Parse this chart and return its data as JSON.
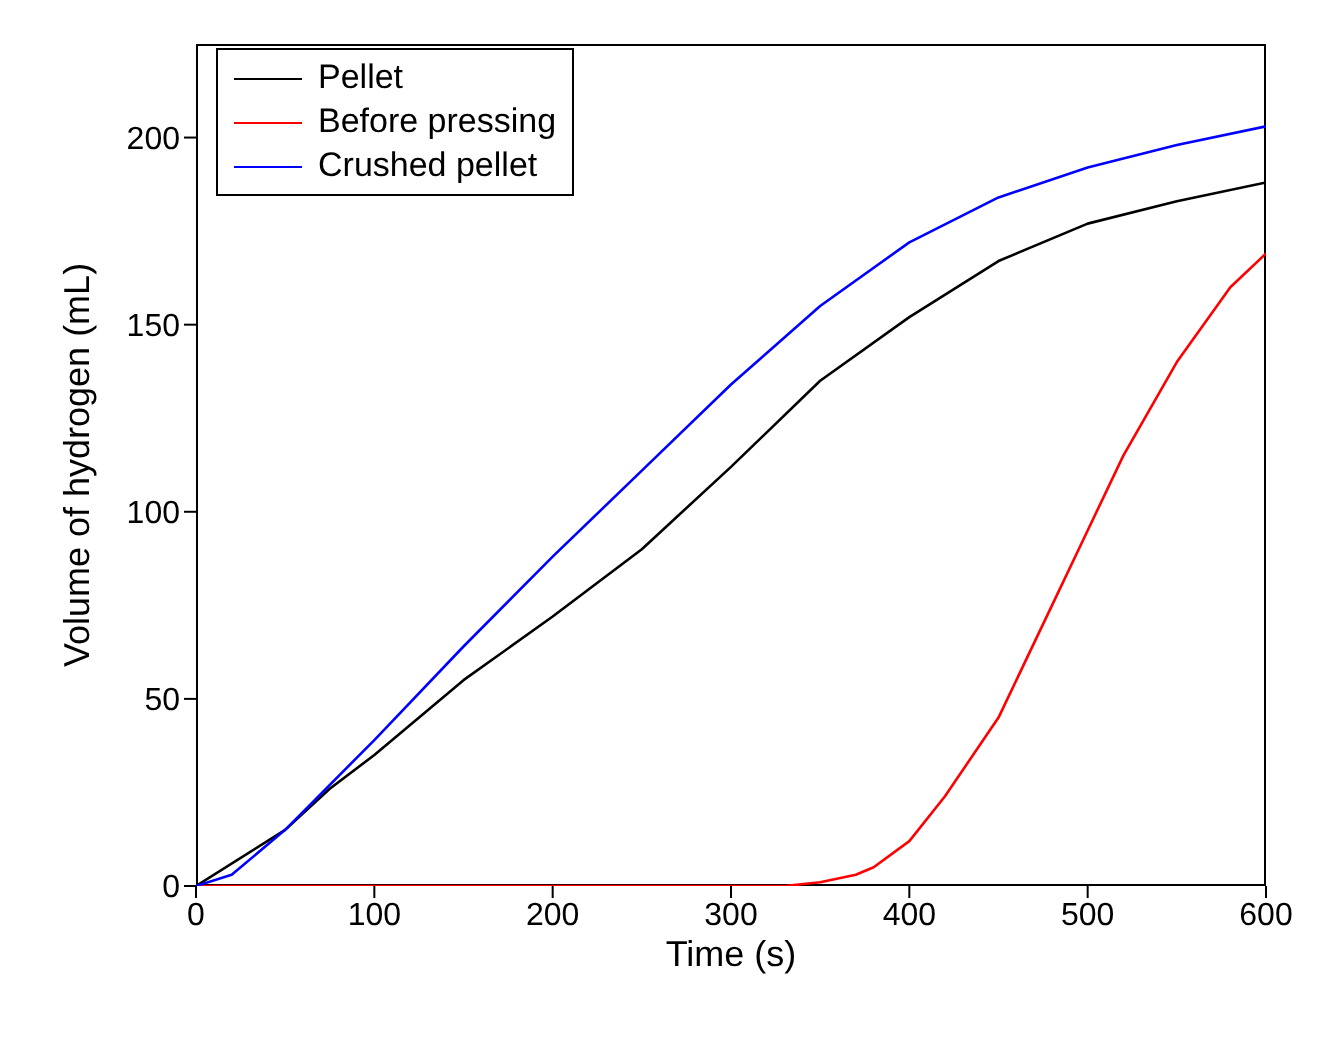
{
  "chart_data": {
    "type": "line",
    "xlabel": "Time (s)",
    "ylabel": "Volume of hydrogen (mL)",
    "xlim": [
      0,
      600
    ],
    "ylim": [
      0,
      225
    ],
    "xticks": [
      0,
      100,
      200,
      300,
      400,
      500,
      600
    ],
    "yticks": [
      0,
      50,
      100,
      150,
      200
    ],
    "grid": false,
    "legend": "top left",
    "marker": "none",
    "line_style": "solid",
    "series": [
      {
        "name": "Pellet",
        "color": "#000000",
        "x": [
          0,
          50,
          75,
          100,
          150,
          200,
          250,
          300,
          350,
          400,
          450,
          500,
          550,
          600
        ],
        "values": [
          0,
          15,
          26,
          35,
          55,
          72,
          90,
          112,
          135,
          152,
          167,
          177,
          183,
          188
        ]
      },
      {
        "name": "Before pressing",
        "color": "#ff0000",
        "x": [
          0,
          100,
          200,
          300,
          330,
          350,
          370,
          380,
          400,
          420,
          450,
          480,
          500,
          520,
          550,
          580,
          600
        ],
        "values": [
          0,
          0,
          0,
          0,
          0,
          1,
          3,
          5,
          12,
          24,
          45,
          75,
          95,
          115,
          140,
          160,
          169
        ]
      },
      {
        "name": "Crushed pellet",
        "color": "#0000ff",
        "x": [
          0,
          20,
          50,
          100,
          150,
          200,
          250,
          300,
          350,
          400,
          450,
          500,
          550,
          600
        ],
        "values": [
          0,
          3,
          15,
          39,
          64,
          88,
          111,
          134,
          155,
          172,
          184,
          192,
          198,
          203
        ]
      }
    ]
  }
}
